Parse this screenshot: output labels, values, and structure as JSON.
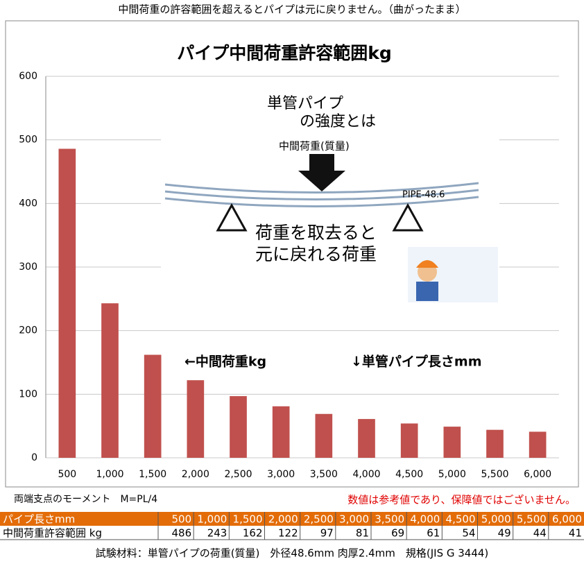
{
  "caption": "中間荷重の許容範囲を超えるとパイプは元に戻りません。（曲がったまま）",
  "chart_data": {
    "type": "bar",
    "title": "パイプ中間荷重許容範囲kg",
    "categories": [
      "500",
      "1,000",
      "1,500",
      "2,000",
      "2,500",
      "3,000",
      "3,500",
      "4,000",
      "4,500",
      "5,000",
      "5,500",
      "6,000"
    ],
    "values": [
      486,
      243,
      162,
      122,
      97,
      81,
      69,
      61,
      54,
      49,
      44,
      41
    ],
    "color": "#c0504d",
    "ylim": [
      0,
      600
    ],
    "yticks": [
      0,
      100,
      200,
      300,
      400,
      500,
      600
    ],
    "grid": true,
    "annotations": [
      "←中間荷重kg",
      "↓単管パイプ長さmm"
    ]
  },
  "inset": {
    "heading_1": "単管パイプ",
    "heading_2": "の強度とは",
    "load": "中間荷重(質量)",
    "pipe": "PIPE-48.6",
    "note_1": "荷重を取去ると",
    "note_2": "元に戻れる荷重"
  },
  "formula": "両端支点のモーメント　M=PL/4",
  "disclaimer": "数値は参考値であり、保障値ではございません。",
  "table": {
    "row_headers": [
      "パイプ長さmm",
      "中間荷重許容範囲 kg"
    ]
  },
  "footer": "試験材料：単管パイプの荷重(質量)　外径48.6mm 肉厚2.4mm　規格(JIS G 3444)"
}
